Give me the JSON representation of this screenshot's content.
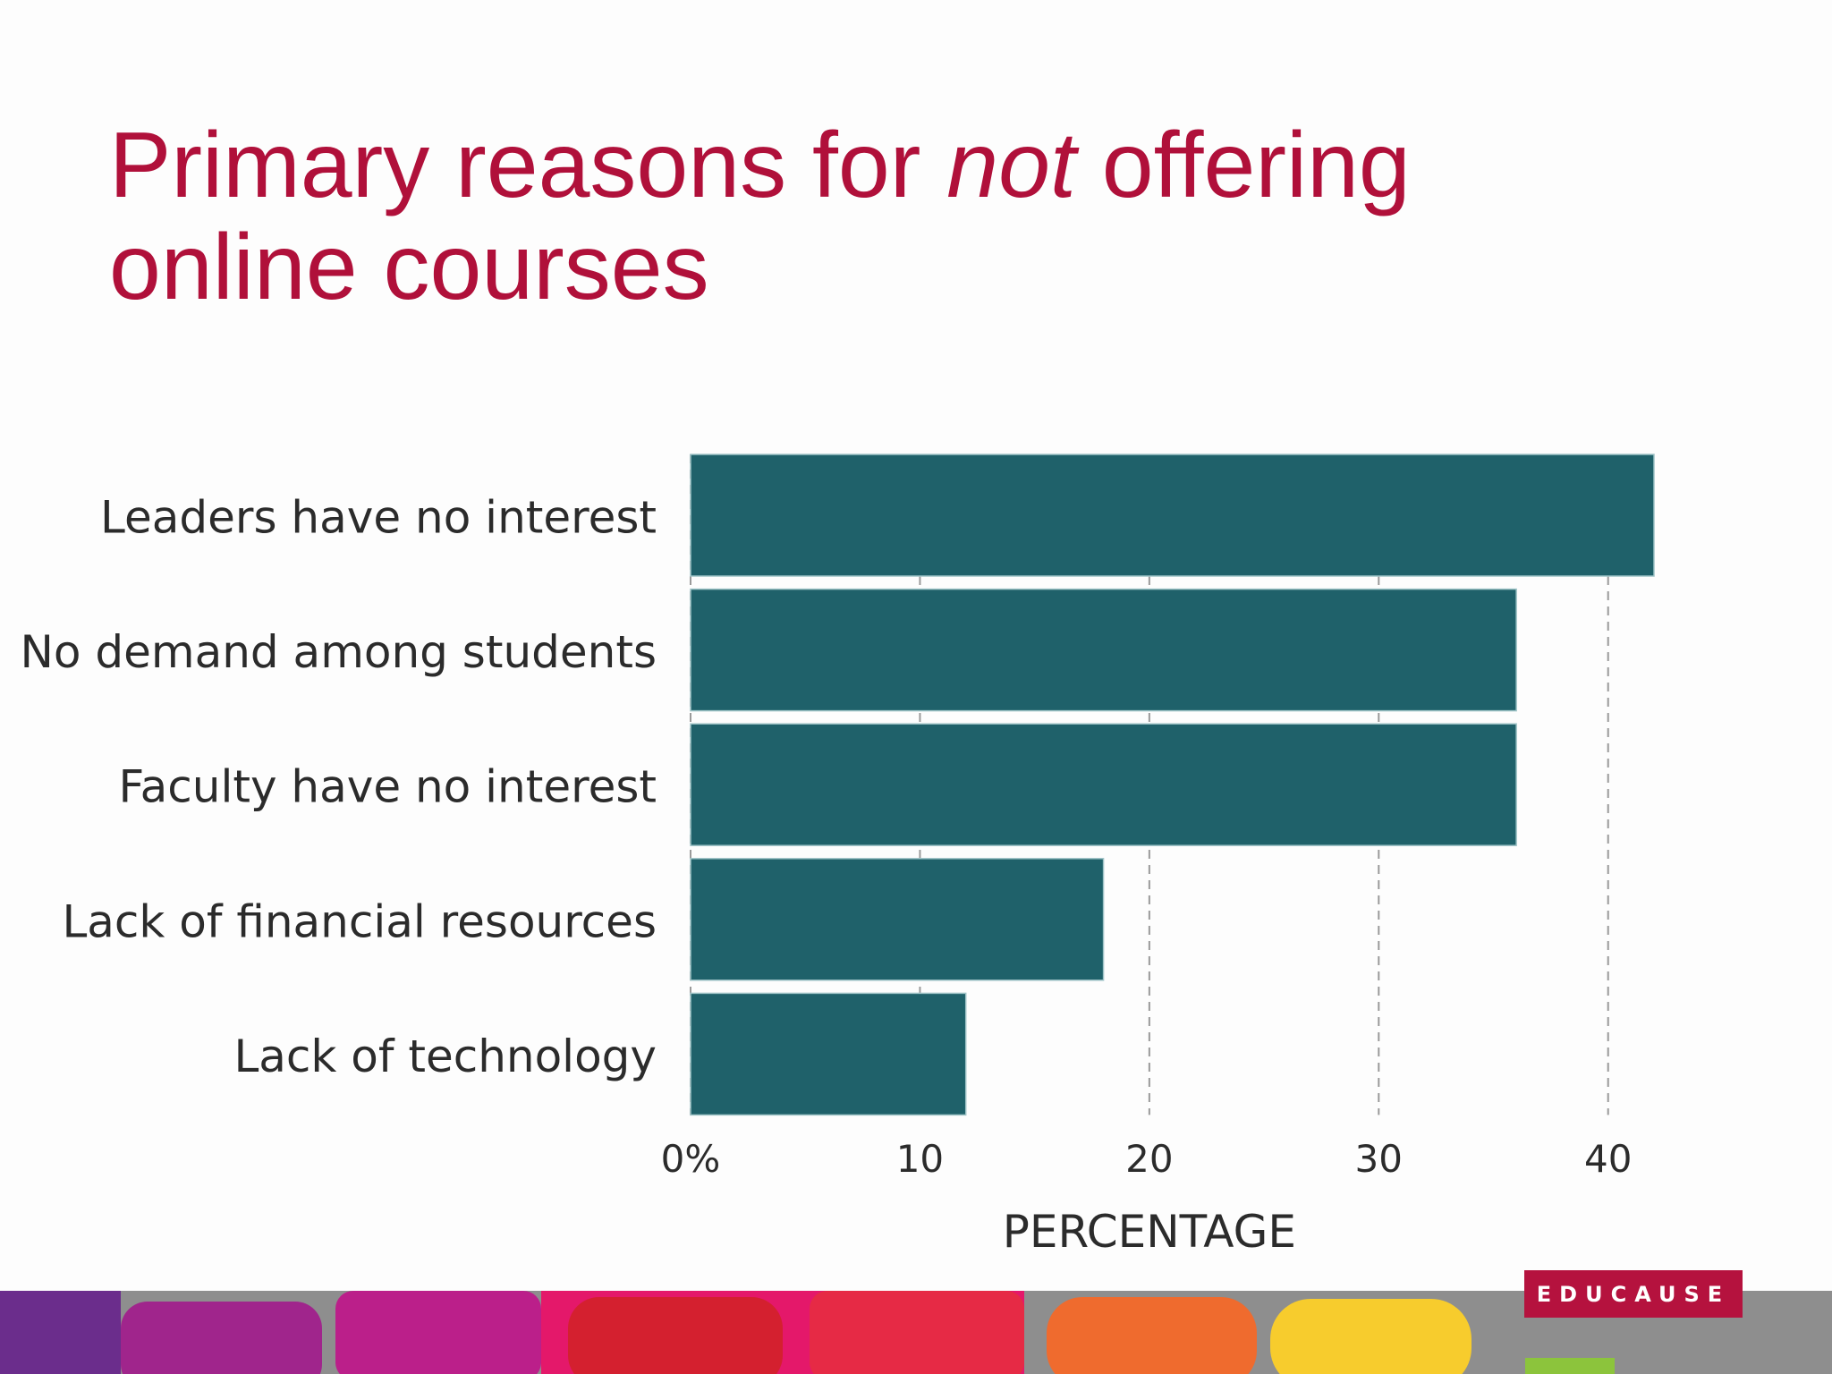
{
  "chart_data": {
    "type": "bar",
    "orientation": "horizontal",
    "title": {
      "before": "Primary reasons for ",
      "emphasis": "not",
      "after": " offering online courses"
    },
    "categories": [
      "Leaders have no interest",
      "No demand among students",
      "Faculty have no interest",
      "Lack of financial resources",
      "Lack of technology"
    ],
    "values": [
      42,
      36,
      36,
      18,
      12
    ],
    "color": "#1f616a",
    "xlim": [
      0,
      42
    ],
    "xticks": [
      {
        "value": 0,
        "label": "0%"
      },
      10,
      20,
      30,
      40
    ],
    "x_label": "PERCENTAGE",
    "grid": true
  },
  "logo": "EDUCAUSE"
}
